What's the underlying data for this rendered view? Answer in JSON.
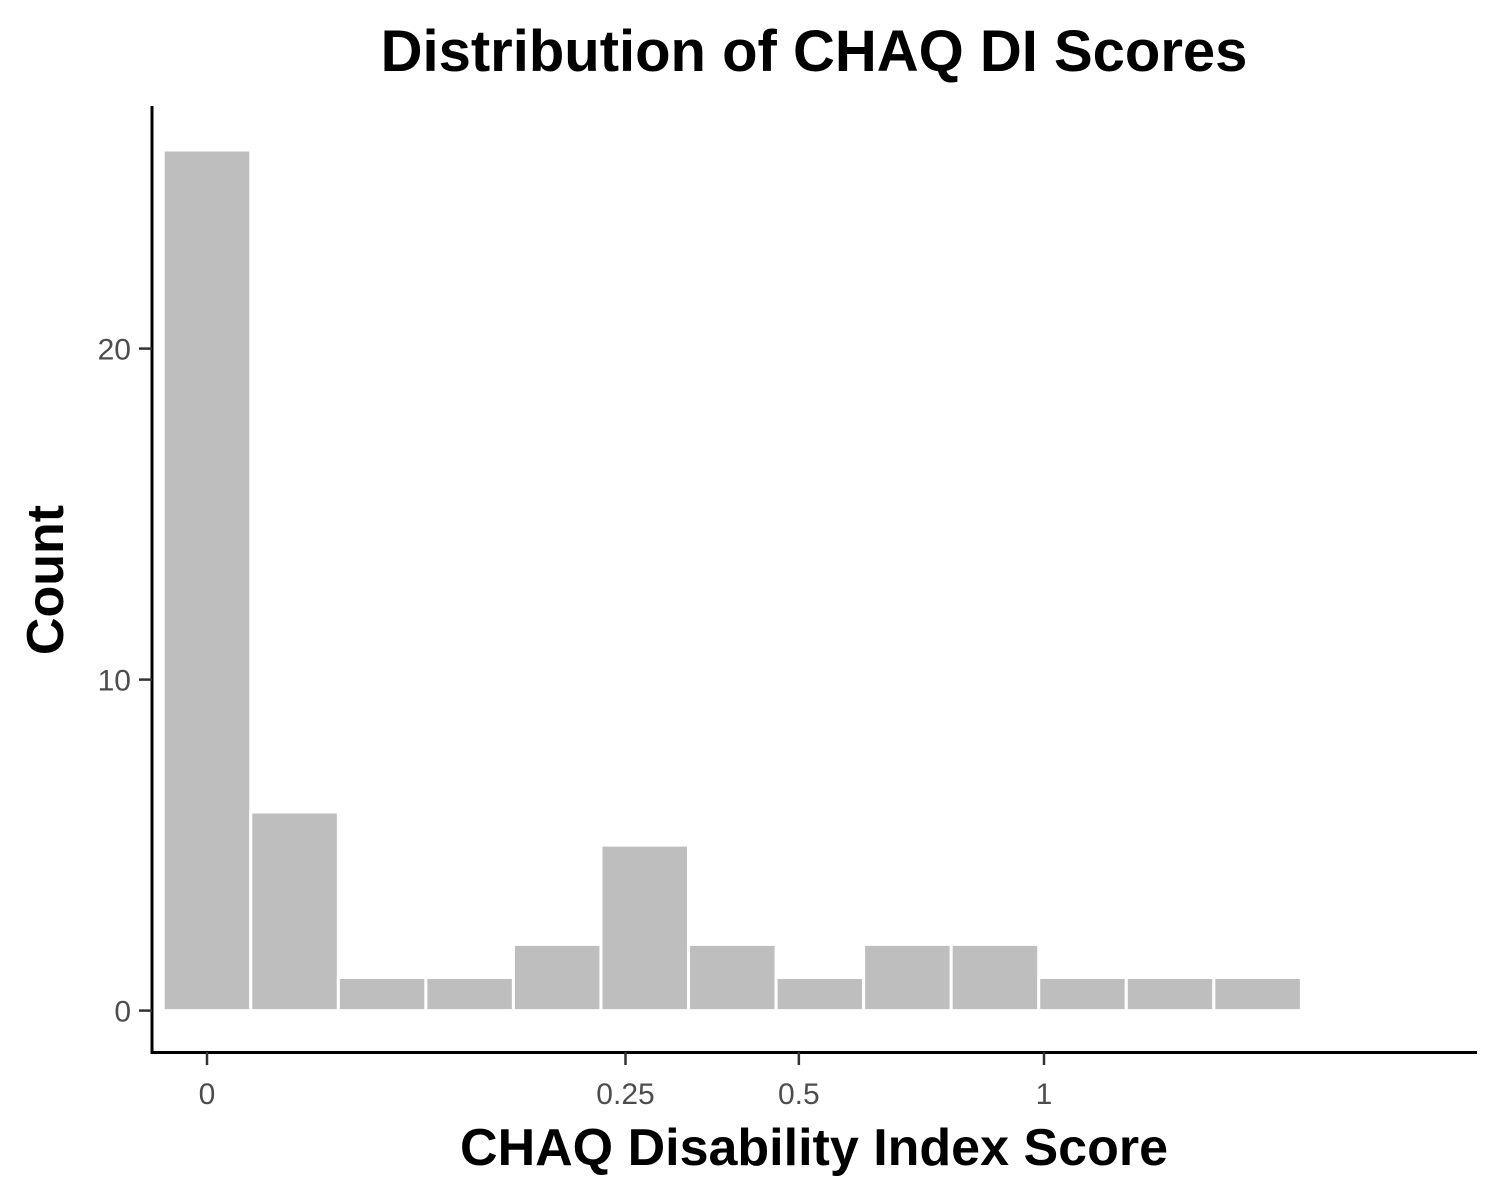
{
  "chart_data": {
    "type": "bar",
    "title": "Distribution of CHAQ DI Scores",
    "xlabel": "CHAQ Disability Index Score",
    "ylabel": "Count",
    "x_scale": "sqrt",
    "xticks": [
      {
        "value": 0,
        "label": "0"
      },
      {
        "value": 0.25,
        "label": "0.25"
      },
      {
        "value": 0.5,
        "label": "0.5"
      },
      {
        "value": 1,
        "label": "1"
      }
    ],
    "yticks": [
      {
        "value": 0,
        "label": "0"
      },
      {
        "value": 10,
        "label": "10"
      },
      {
        "value": 20,
        "label": "20"
      }
    ],
    "bin_width_sqrt": 0.1046,
    "bins": [
      {
        "sqrt_x": 0.0,
        "count": 26
      },
      {
        "sqrt_x": 0.1046,
        "count": 6
      },
      {
        "sqrt_x": 0.2092,
        "count": 1
      },
      {
        "sqrt_x": 0.3138,
        "count": 1
      },
      {
        "sqrt_x": 0.4184,
        "count": 2
      },
      {
        "sqrt_x": 0.523,
        "count": 5
      },
      {
        "sqrt_x": 0.6276,
        "count": 2
      },
      {
        "sqrt_x": 0.7322,
        "count": 1
      },
      {
        "sqrt_x": 0.8368,
        "count": 2
      },
      {
        "sqrt_x": 0.9414,
        "count": 2
      },
      {
        "sqrt_x": 1.046,
        "count": 1
      },
      {
        "sqrt_x": 1.1506,
        "count": 1
      },
      {
        "sqrt_x": 1.2552,
        "count": 1
      }
    ],
    "ylim": [
      -1.3,
      27.5
    ],
    "bar_color": "#bebebe",
    "bar_outline": "#ffffff",
    "grid": false
  }
}
